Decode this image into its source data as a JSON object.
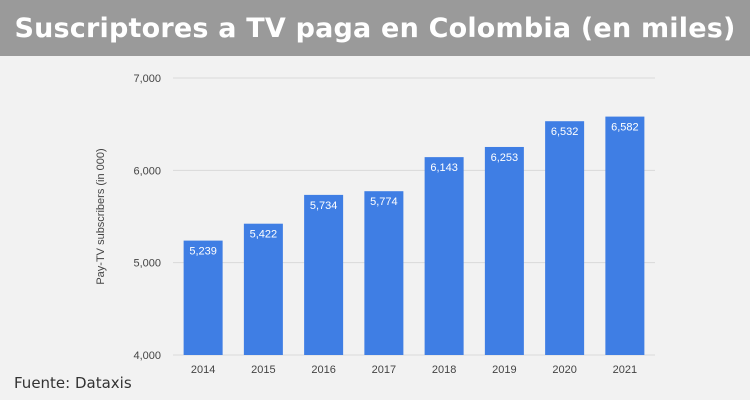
{
  "header": {
    "title": "Suscriptores a TV paga en Colombia (en miles)"
  },
  "footer": {
    "source": "Fuente: Dataxis"
  },
  "colors": {
    "bar": "#3f7ee4",
    "grid": "#d9d9d9",
    "title_bg": "#9a9a9a"
  },
  "chart_data": {
    "type": "bar",
    "title": "",
    "ylabel": "Pay-TV subscribers (in 000)",
    "xlabel": "",
    "categories": [
      "2014",
      "2015",
      "2016",
      "2017",
      "2018",
      "2019",
      "2020",
      "2021"
    ],
    "values": [
      5239,
      5422,
      5734,
      5774,
      6143,
      6253,
      6532,
      6582
    ],
    "value_labels": [
      "5,239",
      "5,422",
      "5,734",
      "5,774",
      "6,143",
      "6,253",
      "6,532",
      "6,582"
    ],
    "ylim": [
      4000,
      7000
    ],
    "yticks": [
      4000,
      5000,
      6000,
      7000
    ],
    "ytick_labels": [
      "4,000",
      "5,000",
      "6,000",
      "7,000"
    ],
    "grid": true
  }
}
